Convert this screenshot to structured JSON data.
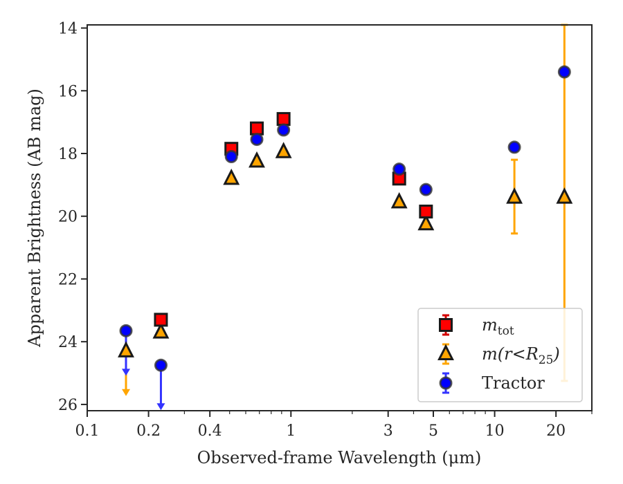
{
  "chart_data": {
    "type": "scatter",
    "xlabel": "Observed-frame Wavelength (μm)",
    "ylabel": "Apparent Brightness (AB mag)",
    "xscale": "log",
    "xlim": [
      0.1,
      30
    ],
    "ylim": [
      26.2,
      13.9
    ],
    "y_inverted": true,
    "xticks": [
      {
        "value": 0.1,
        "label": "0.1"
      },
      {
        "value": 0.2,
        "label": "0.2"
      },
      {
        "value": 0.4,
        "label": "0.4"
      },
      {
        "value": 1,
        "label": "1"
      },
      {
        "value": 3,
        "label": "3"
      },
      {
        "value": 5,
        "label": "5"
      },
      {
        "value": 10,
        "label": "10"
      },
      {
        "value": 20,
        "label": "20"
      }
    ],
    "yticks": [
      {
        "value": 14,
        "label": "14"
      },
      {
        "value": 16,
        "label": "16"
      },
      {
        "value": 18,
        "label": "18"
      },
      {
        "value": 20,
        "label": "20"
      },
      {
        "value": 22,
        "label": "22"
      },
      {
        "value": 24,
        "label": "24"
      },
      {
        "value": 26,
        "label": "26"
      }
    ],
    "legend_position": "lower-right",
    "series": [
      {
        "name": "m_tot",
        "label_main": "m",
        "label_sub": "tot",
        "marker": "square",
        "color": "#ff0000",
        "errcolor": "#d40000",
        "points": [
          {
            "x": 0.23,
            "y": 23.3
          },
          {
            "x": 0.51,
            "y": 17.85
          },
          {
            "x": 0.68,
            "y": 17.2
          },
          {
            "x": 0.92,
            "y": 16.9
          },
          {
            "x": 3.4,
            "y": 18.8
          },
          {
            "x": 4.6,
            "y": 19.85
          }
        ]
      },
      {
        "name": "m(r<R25)",
        "label_main": "m(r<R",
        "label_sub": "25",
        "label_end": ")",
        "marker": "triangle",
        "color": "#ffa500",
        "errcolor": "#ffa500",
        "points": [
          {
            "x": 0.155,
            "y": 24.3,
            "upper_limit": true
          },
          {
            "x": 0.23,
            "y": 23.7
          },
          {
            "x": 0.51,
            "y": 18.8
          },
          {
            "x": 0.68,
            "y": 18.25
          },
          {
            "x": 0.92,
            "y": 17.95
          },
          {
            "x": 3.4,
            "y": 19.55
          },
          {
            "x": 4.6,
            "y": 20.25
          },
          {
            "x": 12.5,
            "y": 19.4,
            "yerr_low": 18.2,
            "yerr_high": 20.55
          },
          {
            "x": 22.0,
            "y": 19.4,
            "yerr_low": 13.9,
            "yerr_high": 25.25
          }
        ]
      },
      {
        "name": "Tractor",
        "label_main": "Tractor",
        "marker": "circle",
        "color": "#0000ff",
        "errcolor": "#3333ff",
        "points": [
          {
            "x": 0.155,
            "y": 23.65,
            "upper_limit": true
          },
          {
            "x": 0.23,
            "y": 24.75,
            "upper_limit": true
          },
          {
            "x": 0.51,
            "y": 18.1
          },
          {
            "x": 0.68,
            "y": 17.55
          },
          {
            "x": 0.92,
            "y": 17.25
          },
          {
            "x": 3.4,
            "y": 18.5
          },
          {
            "x": 4.6,
            "y": 19.15
          },
          {
            "x": 12.5,
            "y": 17.8
          },
          {
            "x": 22.0,
            "y": 15.4
          }
        ]
      }
    ]
  }
}
